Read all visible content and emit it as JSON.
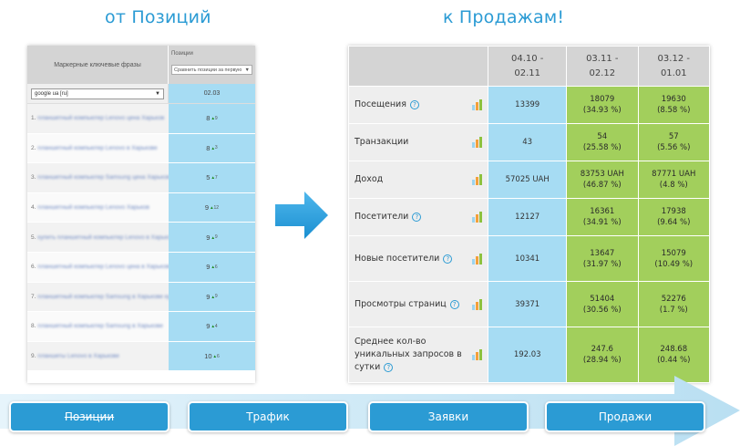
{
  "headings": {
    "left": "от Позиций",
    "right": "к Продажам!"
  },
  "left_table": {
    "col_keywords": "Маркерные ключевые фразы",
    "col_positions": "Позиции",
    "compare_select": "Сравнить позиции за первую",
    "engine_select": "google ua [ru]",
    "date": "02.03",
    "rows": [
      {
        "num": "1.",
        "phrase": "планшетный компьютер Lenovo цена Харьков",
        "pos": "8",
        "change": "9"
      },
      {
        "num": "2.",
        "phrase": "планшетный компьютер Lenovo в Харькове",
        "pos": "8",
        "change": "3"
      },
      {
        "num": "3.",
        "phrase": "планшетный компьютер Samsung цена Харьков",
        "pos": "5",
        "change": "7"
      },
      {
        "num": "4.",
        "phrase": "планшетный компьютер Lenovo Харьков",
        "pos": "9",
        "change": "12"
      },
      {
        "num": "5.",
        "phrase": "купить планшетный компьютер Lenovo в Харькове",
        "pos": "9",
        "change": "9"
      },
      {
        "num": "6.",
        "phrase": "планшетный компьютер Lenovo цена в Харькове",
        "pos": "9",
        "change": "6"
      },
      {
        "num": "7.",
        "phrase": "планшетный компьютер Samsung в Харькове купить",
        "pos": "9",
        "change": "9"
      },
      {
        "num": "8.",
        "phrase": "планшетный компьютер Samsung в Харькове",
        "pos": "9",
        "change": "4"
      },
      {
        "num": "9.",
        "phrase": "планшеты Lenovo в Харькове",
        "pos": "10",
        "change": "6"
      }
    ]
  },
  "right_table": {
    "periods": [
      {
        "a": "04.10 -",
        "b": "02.11"
      },
      {
        "a": "03.11 -",
        "b": "02.12"
      },
      {
        "a": "03.12 -",
        "b": "01.01"
      }
    ],
    "rows": [
      {
        "label": "Посещения",
        "help": true,
        "v1": "13399",
        "v2": "18079",
        "p2": "(34.93 %)",
        "v3": "19630",
        "p3": "(8.58 %)"
      },
      {
        "label": "Транзакции",
        "help": false,
        "v1": "43",
        "v2": "54",
        "p2": "(25.58 %)",
        "v3": "57",
        "p3": "(5.56 %)"
      },
      {
        "label": "Доход",
        "help": false,
        "v1": "57025 UAH",
        "v2": "83753 UAH",
        "p2": "(46.87 %)",
        "v3": "87771 UAH",
        "p3": "(4.8 %)"
      },
      {
        "label": "Посетители",
        "help": true,
        "v1": "12127",
        "v2": "16361",
        "p2": "(34.91 %)",
        "v3": "17938",
        "p3": "(9.64 %)"
      },
      {
        "label": "Новые посетители",
        "help": true,
        "v1": "10341",
        "v2": "13647",
        "p2": "(31.97 %)",
        "v3": "15079",
        "p3": "(10.49 %)"
      },
      {
        "label": "Просмотры страниц",
        "help": true,
        "v1": "39371",
        "v2": "51404",
        "p2": "(30.56 %)",
        "v3": "52276",
        "p3": "(1.7 %)"
      },
      {
        "label": "Среднее кол-во уникальных запросов в сутки",
        "help": true,
        "v1": "192.03",
        "v2": "247.6",
        "p2": "(28.94 %)",
        "v3": "248.68",
        "p3": "(0.44 %)"
      }
    ]
  },
  "stages": [
    "Позиции",
    "Трафик",
    "Заявки",
    "Продажи"
  ],
  "colors": {
    "accent": "#2b9bd4",
    "cell_blue": "#a6dcf3",
    "cell_green": "#a2cf5c",
    "header_gray": "#d4d4d4",
    "band": "#cfe9f6"
  }
}
